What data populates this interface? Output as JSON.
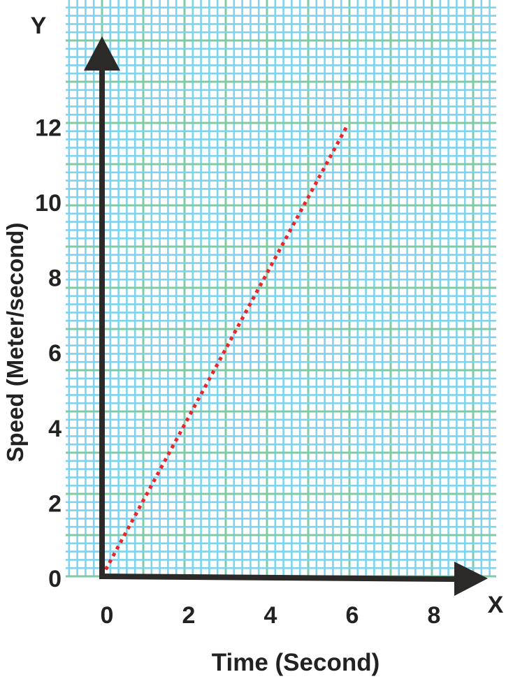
{
  "chart_data": {
    "type": "line",
    "title": "",
    "xlabel": "Time (Second)",
    "ylabel": "Speed (Meter/second)",
    "x_axis_letter": "X",
    "y_axis_letter": "Y",
    "xlim": [
      0,
      9
    ],
    "ylim": [
      0,
      13.5
    ],
    "x_ticks": [
      "0",
      "2",
      "4",
      "6",
      "8"
    ],
    "y_ticks": [
      "0",
      "2",
      "4",
      "6",
      "8",
      "10",
      "12"
    ],
    "grid": true,
    "series": [
      {
        "x": [
          0,
          6
        ],
        "y": [
          0,
          12
        ],
        "style": "dotted",
        "color": "#e8262b"
      }
    ],
    "colors": {
      "minor_grid": "#7fd3ee",
      "major_grid": "#80cba4",
      "axis": "#2b2a29",
      "line": "#e8262b"
    }
  }
}
